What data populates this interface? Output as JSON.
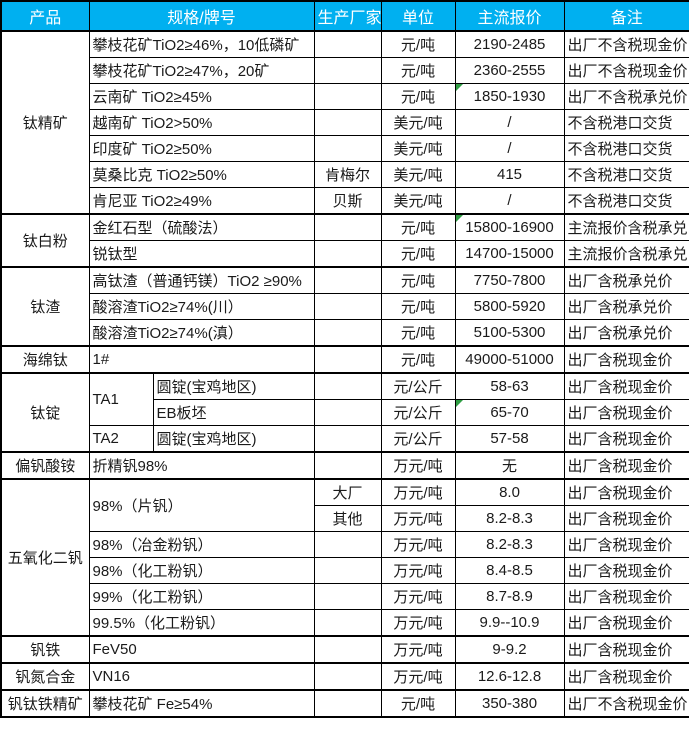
{
  "colors": {
    "header_bg": "#00B0F0",
    "header_text": "#FFFFFF",
    "border": "#000000",
    "comment_triangle": "#2F9E44",
    "cell_bg": "#FFFFFF"
  },
  "header": [
    {
      "text": "产品",
      "cs": 1
    },
    {
      "text": "规格/牌号",
      "cs": 2
    },
    {
      "text": "生产厂家",
      "cs": 1
    },
    {
      "text": "单位",
      "cs": 1
    },
    {
      "text": "主流报价",
      "cs": 1
    },
    {
      "text": "备注",
      "cs": 1
    }
  ],
  "rows": [
    {
      "group_start": true,
      "cells": [
        {
          "text": "钛精矿",
          "rs": 7,
          "cls": "c",
          "name": "product-cell"
        },
        {
          "text": "攀枝花矿TiO2≥46%，10低磷矿",
          "cs": 2,
          "cls": "l",
          "name": "spec-cell"
        },
        {
          "text": "",
          "cls": "c",
          "name": "manufacturer-cell"
        },
        {
          "text": "元/吨",
          "cls": "c",
          "name": "unit-cell"
        },
        {
          "text": "2190-2485",
          "cls": "c",
          "name": "price-cell"
        },
        {
          "text": "出厂不含税现金价",
          "cls": "l",
          "name": "remark-cell"
        }
      ]
    },
    {
      "cells": [
        {
          "text": "攀枝花矿TiO2≥47%，20矿",
          "cs": 2,
          "cls": "l",
          "name": "spec-cell"
        },
        {
          "text": "",
          "cls": "c",
          "name": "manufacturer-cell"
        },
        {
          "text": "元/吨",
          "cls": "c",
          "name": "unit-cell"
        },
        {
          "text": "2360-2555",
          "cls": "c",
          "name": "price-cell"
        },
        {
          "text": "出厂不含税现金价",
          "cls": "l",
          "name": "remark-cell"
        }
      ]
    },
    {
      "cells": [
        {
          "text": "云南矿 TiO2≥45%",
          "cs": 2,
          "cls": "l",
          "name": "spec-cell"
        },
        {
          "text": "",
          "cls": "c",
          "name": "manufacturer-cell"
        },
        {
          "text": "元/吨",
          "cls": "c",
          "name": "unit-cell"
        },
        {
          "text": "1850-1930",
          "cls": "c triangle",
          "name": "price-cell"
        },
        {
          "text": "出厂不含税承兑价",
          "cls": "l",
          "name": "remark-cell"
        }
      ]
    },
    {
      "cells": [
        {
          "text": "越南矿 TiO2>50%",
          "cs": 2,
          "cls": "l",
          "name": "spec-cell"
        },
        {
          "text": "",
          "cls": "c",
          "name": "manufacturer-cell"
        },
        {
          "text": "美元/吨",
          "cls": "c",
          "name": "unit-cell"
        },
        {
          "text": "/",
          "cls": "c",
          "name": "price-cell"
        },
        {
          "text": "不含税港口交货",
          "cls": "l",
          "name": "remark-cell"
        }
      ]
    },
    {
      "cells": [
        {
          "text": "印度矿 TiO2≥50%",
          "cs": 2,
          "cls": "l",
          "name": "spec-cell"
        },
        {
          "text": "",
          "cls": "c",
          "name": "manufacturer-cell"
        },
        {
          "text": "美元/吨",
          "cls": "c",
          "name": "unit-cell"
        },
        {
          "text": "/",
          "cls": "c",
          "name": "price-cell"
        },
        {
          "text": "不含税港口交货",
          "cls": "l",
          "name": "remark-cell"
        }
      ]
    },
    {
      "cells": [
        {
          "text": "莫桑比克 TiO2≥50%",
          "cs": 2,
          "cls": "l",
          "name": "spec-cell"
        },
        {
          "text": "肯梅尔",
          "cls": "c",
          "name": "manufacturer-cell"
        },
        {
          "text": "美元/吨",
          "cls": "c",
          "name": "unit-cell"
        },
        {
          "text": "415",
          "cls": "c",
          "name": "price-cell"
        },
        {
          "text": "不含税港口交货",
          "cls": "l",
          "name": "remark-cell"
        }
      ]
    },
    {
      "cells": [
        {
          "text": "肯尼亚 TiO2≥49%",
          "cs": 2,
          "cls": "l",
          "name": "spec-cell"
        },
        {
          "text": "贝斯",
          "cls": "c",
          "name": "manufacturer-cell"
        },
        {
          "text": "美元/吨",
          "cls": "c",
          "name": "unit-cell"
        },
        {
          "text": "/",
          "cls": "c",
          "name": "price-cell"
        },
        {
          "text": "不含税港口交货",
          "cls": "l",
          "name": "remark-cell"
        }
      ]
    },
    {
      "group_start": true,
      "cells": [
        {
          "text": "钛白粉",
          "rs": 2,
          "cls": "c",
          "name": "product-cell"
        },
        {
          "text": "金红石型（硫酸法）",
          "cs": 2,
          "cls": "l",
          "name": "spec-cell"
        },
        {
          "text": "",
          "cls": "c",
          "name": "manufacturer-cell"
        },
        {
          "text": "元/吨",
          "cls": "c",
          "name": "unit-cell"
        },
        {
          "text": "15800-16900",
          "cls": "c triangle",
          "name": "price-cell"
        },
        {
          "text": "主流报价含税承兑",
          "cls": "l",
          "name": "remark-cell"
        }
      ]
    },
    {
      "cells": [
        {
          "text": "锐钛型",
          "cs": 2,
          "cls": "l",
          "name": "spec-cell"
        },
        {
          "text": "",
          "cls": "c",
          "name": "manufacturer-cell"
        },
        {
          "text": "元/吨",
          "cls": "c",
          "name": "unit-cell"
        },
        {
          "text": "14700-15000",
          "cls": "c",
          "name": "price-cell"
        },
        {
          "text": "主流报价含税承兑",
          "cls": "l",
          "name": "remark-cell"
        }
      ]
    },
    {
      "group_start": true,
      "cells": [
        {
          "text": "钛渣",
          "rs": 3,
          "cls": "c",
          "name": "product-cell"
        },
        {
          "text": "高钛渣（普通钙镁）TiO2 ≥90%",
          "cs": 2,
          "cls": "l small",
          "name": "spec-cell"
        },
        {
          "text": "",
          "cls": "c",
          "name": "manufacturer-cell"
        },
        {
          "text": "元/吨",
          "cls": "c",
          "name": "unit-cell"
        },
        {
          "text": "7750-7800",
          "cls": "c",
          "name": "price-cell"
        },
        {
          "text": "出厂含税承兑价",
          "cls": "l",
          "name": "remark-cell"
        }
      ]
    },
    {
      "cells": [
        {
          "text": "酸溶渣TiO2≥74%(川）",
          "cs": 2,
          "cls": "l",
          "name": "spec-cell"
        },
        {
          "text": "",
          "cls": "c",
          "name": "manufacturer-cell"
        },
        {
          "text": "元/吨",
          "cls": "c",
          "name": "unit-cell"
        },
        {
          "text": "5800-5920",
          "cls": "c",
          "name": "price-cell"
        },
        {
          "text": "出厂含税承兑价",
          "cls": "l",
          "name": "remark-cell"
        }
      ]
    },
    {
      "cells": [
        {
          "text": "酸溶渣TiO2≥74%(滇）",
          "cs": 2,
          "cls": "l",
          "name": "spec-cell"
        },
        {
          "text": "",
          "cls": "c",
          "name": "manufacturer-cell"
        },
        {
          "text": "元/吨",
          "cls": "c",
          "name": "unit-cell"
        },
        {
          "text": "5100-5300",
          "cls": "c",
          "name": "price-cell"
        },
        {
          "text": "出厂含税承兑价",
          "cls": "l",
          "name": "remark-cell"
        }
      ]
    },
    {
      "group_start": true,
      "cells": [
        {
          "text": "海绵钛",
          "cls": "c",
          "name": "product-cell"
        },
        {
          "text": "1#",
          "cs": 2,
          "cls": "l",
          "name": "spec-cell"
        },
        {
          "text": "",
          "cls": "c",
          "name": "manufacturer-cell"
        },
        {
          "text": "元/吨",
          "cls": "c",
          "name": "unit-cell"
        },
        {
          "text": "49000-51000",
          "cls": "c",
          "name": "price-cell"
        },
        {
          "text": "出厂含税现金价",
          "cls": "l",
          "name": "remark-cell"
        }
      ]
    },
    {
      "group_start": true,
      "cells": [
        {
          "text": "钛锭",
          "rs": 3,
          "cls": "c",
          "name": "product-cell"
        },
        {
          "text": "TA1",
          "rs": 2,
          "cls": "l",
          "name": "grade-cell"
        },
        {
          "text": "圆锭(宝鸡地区)",
          "cls": "l",
          "name": "spec-cell"
        },
        {
          "text": "",
          "cls": "c",
          "name": "manufacturer-cell"
        },
        {
          "text": "元/公斤",
          "cls": "c",
          "name": "unit-cell"
        },
        {
          "text": "58-63",
          "cls": "c",
          "name": "price-cell"
        },
        {
          "text": "出厂含税现金价",
          "cls": "l",
          "name": "remark-cell"
        }
      ]
    },
    {
      "cells": [
        {
          "text": "EB板坯",
          "cls": "l",
          "name": "spec-cell"
        },
        {
          "text": "",
          "cls": "c",
          "name": "manufacturer-cell"
        },
        {
          "text": "元/公斤",
          "cls": "c",
          "name": "unit-cell"
        },
        {
          "text": "65-70",
          "cls": "c triangle",
          "name": "price-cell"
        },
        {
          "text": "出厂含税现金价",
          "cls": "l",
          "name": "remark-cell"
        }
      ]
    },
    {
      "cells": [
        {
          "text": "TA2",
          "cls": "l",
          "name": "grade-cell"
        },
        {
          "text": "圆锭(宝鸡地区)",
          "cls": "l",
          "name": "spec-cell"
        },
        {
          "text": "",
          "cls": "c",
          "name": "manufacturer-cell"
        },
        {
          "text": "元/公斤",
          "cls": "c",
          "name": "unit-cell"
        },
        {
          "text": "57-58",
          "cls": "c",
          "name": "price-cell"
        },
        {
          "text": "出厂含税现金价",
          "cls": "l",
          "name": "remark-cell"
        }
      ]
    },
    {
      "group_start": true,
      "cells": [
        {
          "text": "偏钒酸铵",
          "cls": "c",
          "name": "product-cell"
        },
        {
          "text": "折精钒98%",
          "cs": 2,
          "cls": "l",
          "name": "spec-cell"
        },
        {
          "text": "",
          "cls": "c",
          "name": "manufacturer-cell"
        },
        {
          "text": "万元/吨",
          "cls": "c",
          "name": "unit-cell"
        },
        {
          "text": "无",
          "cls": "c",
          "name": "price-cell"
        },
        {
          "text": "出厂含税现金价",
          "cls": "l",
          "name": "remark-cell"
        }
      ]
    },
    {
      "group_start": true,
      "cells": [
        {
          "text": "五氧化二钒",
          "rs": 6,
          "cls": "c",
          "name": "product-cell"
        },
        {
          "text": "98%（片钒）",
          "cs": 2,
          "rs": 2,
          "cls": "l",
          "name": "spec-cell"
        },
        {
          "text": "大厂",
          "cls": "c",
          "name": "manufacturer-cell"
        },
        {
          "text": "万元/吨",
          "cls": "c",
          "name": "unit-cell"
        },
        {
          "text": "8.0",
          "cls": "c",
          "name": "price-cell"
        },
        {
          "text": "出厂含税现金价",
          "cls": "l",
          "name": "remark-cell"
        }
      ]
    },
    {
      "cells": [
        {
          "text": "其他",
          "cls": "c",
          "name": "manufacturer-cell"
        },
        {
          "text": "万元/吨",
          "cls": "c",
          "name": "unit-cell"
        },
        {
          "text": "8.2-8.3",
          "cls": "c",
          "name": "price-cell"
        },
        {
          "text": "出厂含税现金价",
          "cls": "l",
          "name": "remark-cell"
        }
      ]
    },
    {
      "cells": [
        {
          "text": "98%（冶金粉钒）",
          "cs": 2,
          "cls": "l",
          "name": "spec-cell"
        },
        {
          "text": "",
          "cls": "c",
          "name": "manufacturer-cell"
        },
        {
          "text": "万元/吨",
          "cls": "c",
          "name": "unit-cell"
        },
        {
          "text": "8.2-8.3",
          "cls": "c",
          "name": "price-cell"
        },
        {
          "text": "出厂含税现金价",
          "cls": "l",
          "name": "remark-cell"
        }
      ]
    },
    {
      "cells": [
        {
          "text": "98%（化工粉钒）",
          "cs": 2,
          "cls": "l",
          "name": "spec-cell"
        },
        {
          "text": "",
          "cls": "c",
          "name": "manufacturer-cell"
        },
        {
          "text": "万元/吨",
          "cls": "c",
          "name": "unit-cell"
        },
        {
          "text": "8.4-8.5",
          "cls": "c",
          "name": "price-cell"
        },
        {
          "text": "出厂含税现金价",
          "cls": "l",
          "name": "remark-cell"
        }
      ]
    },
    {
      "cells": [
        {
          "text": "99%（化工粉钒）",
          "cs": 2,
          "cls": "l",
          "name": "spec-cell"
        },
        {
          "text": "",
          "cls": "c",
          "name": "manufacturer-cell"
        },
        {
          "text": "万元/吨",
          "cls": "c",
          "name": "unit-cell"
        },
        {
          "text": "8.7-8.9",
          "cls": "c",
          "name": "price-cell"
        },
        {
          "text": "出厂含税现金价",
          "cls": "l",
          "name": "remark-cell"
        }
      ]
    },
    {
      "cells": [
        {
          "text": "99.5%（化工粉钒）",
          "cs": 2,
          "cls": "l",
          "name": "spec-cell"
        },
        {
          "text": "",
          "cls": "c",
          "name": "manufacturer-cell"
        },
        {
          "text": "万元/吨",
          "cls": "c",
          "name": "unit-cell"
        },
        {
          "text": "9.9--10.9",
          "cls": "c",
          "name": "price-cell"
        },
        {
          "text": "出厂含税现金价",
          "cls": "l",
          "name": "remark-cell"
        }
      ]
    },
    {
      "group_start": true,
      "cells": [
        {
          "text": "钒铁",
          "cls": "c",
          "name": "product-cell"
        },
        {
          "text": "FeV50",
          "cs": 2,
          "cls": "l",
          "name": "spec-cell"
        },
        {
          "text": "",
          "cls": "c",
          "name": "manufacturer-cell"
        },
        {
          "text": "万元/吨",
          "cls": "c",
          "name": "unit-cell"
        },
        {
          "text": "9-9.2",
          "cls": "c",
          "name": "price-cell"
        },
        {
          "text": "出厂含税现金价",
          "cls": "l",
          "name": "remark-cell"
        }
      ]
    },
    {
      "group_start": true,
      "cells": [
        {
          "text": "钒氮合金",
          "cls": "c",
          "name": "product-cell"
        },
        {
          "text": "VN16",
          "cs": 2,
          "cls": "l",
          "name": "spec-cell"
        },
        {
          "text": "",
          "cls": "c",
          "name": "manufacturer-cell"
        },
        {
          "text": "万元/吨",
          "cls": "c",
          "name": "unit-cell"
        },
        {
          "text": "12.6-12.8",
          "cls": "c",
          "name": "price-cell"
        },
        {
          "text": "出厂含税现金价",
          "cls": "l",
          "name": "remark-cell"
        }
      ]
    },
    {
      "group_start": true,
      "cells": [
        {
          "text": "钒钛铁精矿",
          "cls": "c",
          "name": "product-cell"
        },
        {
          "text": "攀枝花矿 Fe≥54%",
          "cs": 2,
          "cls": "l",
          "name": "spec-cell"
        },
        {
          "text": "",
          "cls": "c",
          "name": "manufacturer-cell"
        },
        {
          "text": "元/吨",
          "cls": "c",
          "name": "unit-cell"
        },
        {
          "text": "350-380",
          "cls": "c",
          "name": "price-cell"
        },
        {
          "text": "出厂不含税现金价",
          "cls": "l",
          "name": "remark-cell"
        }
      ]
    }
  ]
}
